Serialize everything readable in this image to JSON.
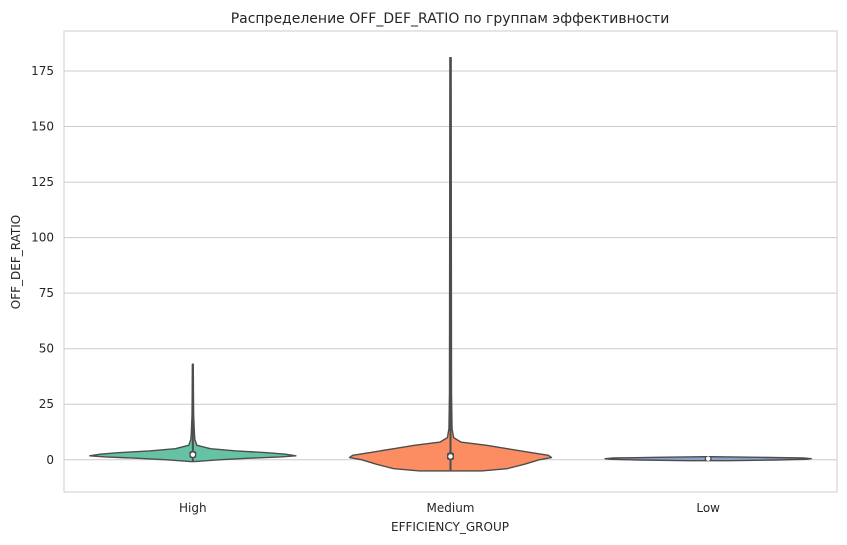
{
  "chart_data": {
    "type": "violin",
    "title": "Распределение OFF_DEF_RATIO по группам эффективности",
    "xlabel": "EFFICIENCY_GROUP",
    "ylabel": "OFF_DEF_RATIO",
    "ylim": [
      -14.5,
      193
    ],
    "yticks": [
      0,
      25,
      50,
      75,
      100,
      125,
      150,
      175
    ],
    "grid": "horizontal",
    "categories": [
      "High",
      "Medium",
      "Low"
    ],
    "colors": [
      "#66c2a5",
      "#fc8d62",
      "#8da0cb"
    ],
    "outline_color": "#4d4d4d",
    "series": [
      {
        "category": "High",
        "range": [
          -0.8,
          43
        ],
        "median": 2.3,
        "q1": 1.5,
        "q3": 3.2,
        "profile": [
          [
            -0.8,
            0.02
          ],
          [
            0,
            0.25
          ],
          [
            0.7,
            0.55
          ],
          [
            1.3,
            0.85
          ],
          [
            1.8,
            1.0
          ],
          [
            2.5,
            0.9
          ],
          [
            3.2,
            0.72
          ],
          [
            4,
            0.42
          ],
          [
            5,
            0.17
          ],
          [
            6.5,
            0.04
          ],
          [
            9,
            0.02
          ],
          [
            12,
            0.015
          ],
          [
            20,
            0.008
          ],
          [
            30,
            0.006
          ],
          [
            43,
            0.004
          ]
        ]
      },
      {
        "category": "Medium",
        "range": [
          -5,
          181
        ],
        "median": 1.5,
        "q1": 0.6,
        "q3": 2.6,
        "profile": [
          [
            -5,
            0.3
          ],
          [
            -4,
            0.55
          ],
          [
            -2,
            0.72
          ],
          [
            0,
            0.86
          ],
          [
            1,
            0.98
          ],
          [
            2,
            0.95
          ],
          [
            3.5,
            0.75
          ],
          [
            5,
            0.55
          ],
          [
            6.5,
            0.35
          ],
          [
            8,
            0.1
          ],
          [
            10,
            0.03
          ],
          [
            14,
            0.015
          ],
          [
            30,
            0.01
          ],
          [
            100,
            0.008
          ],
          [
            181,
            0.006
          ]
        ]
      },
      {
        "category": "Low",
        "range": [
          -0.4,
          1.4
        ],
        "median": 0.5,
        "q1": 0.2,
        "q3": 0.8,
        "profile": [
          [
            -0.4,
            0.2
          ],
          [
            -0.1,
            0.65
          ],
          [
            0.2,
            0.95
          ],
          [
            0.5,
            1.0
          ],
          [
            0.8,
            0.92
          ],
          [
            1.1,
            0.5
          ],
          [
            1.4,
            0.04
          ]
        ]
      }
    ]
  }
}
